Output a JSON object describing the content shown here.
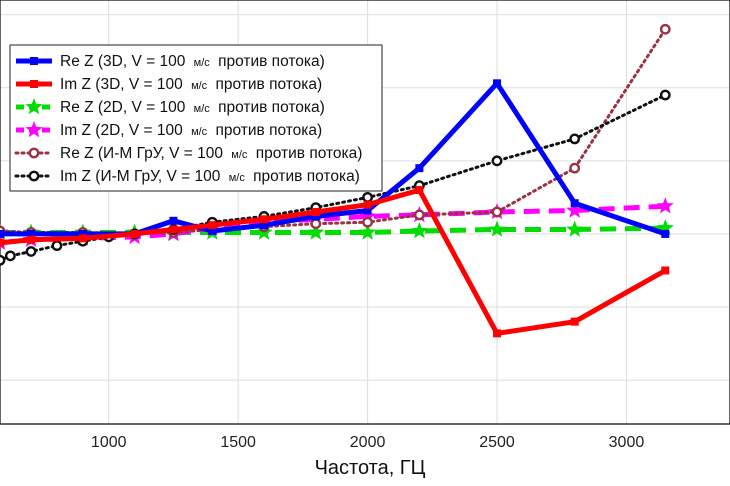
{
  "chart_data": {
    "type": "line",
    "xlabel": "Частота, ГЦ",
    "ylabel": "",
    "xlim": [
      580,
      3400
    ],
    "ylim": [
      -1.3,
      1.6
    ],
    "xticks": [
      1000,
      1500,
      2000,
      2500,
      3000
    ],
    "grid": true,
    "legend_position": "top-left",
    "series": [
      {
        "name_parts": [
          "Re Z (3D, V = 100 ",
          "м/с",
          " против потока)"
        ],
        "color": "#0000ff",
        "style": "solid",
        "marker": "square",
        "x": [
          580,
          700,
          900,
          1100,
          1250,
          1400,
          1600,
          1800,
          2000,
          2200,
          2500,
          2800,
          3150
        ],
        "y": [
          0.0,
          0.0,
          0.0,
          0.0,
          0.09,
          0.02,
          0.06,
          0.12,
          0.16,
          0.45,
          1.03,
          0.21,
          0.0
        ]
      },
      {
        "name_parts": [
          "Im Z (3D, V = 100 ",
          "м/с",
          " против потока)"
        ],
        "color": "#ff0000",
        "style": "solid",
        "marker": "square",
        "x": [
          580,
          700,
          900,
          1100,
          1250,
          1400,
          1600,
          1800,
          2000,
          2200,
          2500,
          2800,
          3150
        ],
        "y": [
          -0.06,
          -0.04,
          -0.03,
          0.0,
          0.03,
          0.06,
          0.1,
          0.15,
          0.2,
          0.3,
          -0.68,
          -0.6,
          -0.25
        ]
      },
      {
        "name_parts": [
          "Re Z (2D, V = 100 ",
          "м/с",
          " против потока)"
        ],
        "color": "#00dd00",
        "style": "dashed",
        "marker": "star",
        "x": [
          580,
          700,
          900,
          1100,
          1250,
          1400,
          1600,
          1800,
          2000,
          2200,
          2500,
          2800,
          3150
        ],
        "y": [
          0.01,
          0.01,
          0.01,
          0.01,
          0.01,
          0.01,
          0.01,
          0.01,
          0.01,
          0.02,
          0.03,
          0.03,
          0.04
        ]
      },
      {
        "name_parts": [
          "Im Z (2D, V = 100 ",
          "м/с",
          " против потока)"
        ],
        "color": "#ff00ff",
        "style": "dashed",
        "marker": "star",
        "x": [
          580,
          700,
          900,
          1100,
          1250,
          1400,
          1600,
          1800,
          2000,
          2200,
          2500,
          2800,
          3150
        ],
        "y": [
          -0.06,
          -0.04,
          -0.03,
          -0.02,
          0.0,
          0.04,
          0.08,
          0.1,
          0.12,
          0.13,
          0.15,
          0.16,
          0.19
        ]
      },
      {
        "name_parts": [
          "Re Z (И-М ГрУ, V = 100 ",
          "м/с",
          " против потока)"
        ],
        "color": "#993344",
        "style": "dotted",
        "marker": "circle",
        "x": [
          580,
          700,
          900,
          1100,
          1250,
          1400,
          1600,
          1800,
          2000,
          2200,
          2500,
          2800,
          3150
        ],
        "y": [
          0.02,
          0.01,
          0.01,
          0.0,
          0.01,
          0.03,
          0.05,
          0.07,
          0.08,
          0.13,
          0.15,
          0.45,
          1.4
        ]
      },
      {
        "name_parts": [
          "Im Z (И-М ГрУ, V = 100 ",
          "м/с",
          " против потока)"
        ],
        "color": "#111111",
        "style": "dotted",
        "marker": "circle",
        "x": [
          580,
          620,
          700,
          800,
          900,
          1000,
          1100,
          1250,
          1400,
          1600,
          1800,
          2000,
          2200,
          2500,
          2800,
          3150
        ],
        "y": [
          -0.18,
          -0.15,
          -0.12,
          -0.08,
          -0.05,
          -0.02,
          0.0,
          0.03,
          0.08,
          0.12,
          0.18,
          0.25,
          0.33,
          0.5,
          0.65,
          0.95
        ]
      }
    ]
  }
}
